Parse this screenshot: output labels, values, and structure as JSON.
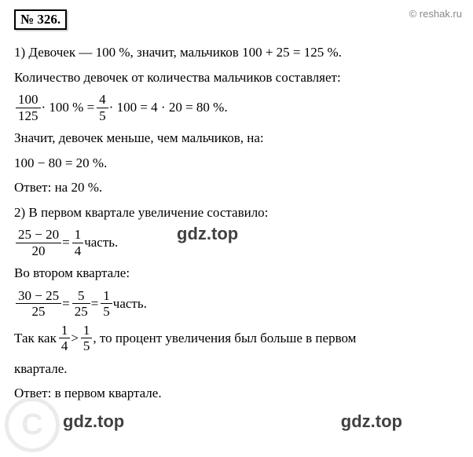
{
  "problem_number": "№ 326.",
  "attribution": "© reshak.ru",
  "watermark_text": "gdz.top",
  "copyright_c": "C",
  "p1": {
    "line1_a": "1) Девочек — 100 %, значит, мальчиков 100 + 25 = 125 %.",
    "line2": "Количество девочек от количества мальчиков составляет:",
    "eq1_f1_num": "100",
    "eq1_f1_den": "125",
    "eq1_mid1": " · 100 % = ",
    "eq1_f2_num": "4",
    "eq1_f2_den": "5",
    "eq1_mid2": " · 100 = 4 · 20 = 80 %.",
    "line3": "Значит, девочек меньше, чем мальчиков, на:",
    "line4": "100 − 80 = 20 %.",
    "answer": "Ответ: на 20 %."
  },
  "p2": {
    "line1": "2) В первом квартале увеличение составило:",
    "eq1_f1_num": "25 − 20",
    "eq1_f1_den": "20",
    "eq1_mid": " = ",
    "eq1_f2_num": "1",
    "eq1_f2_den": "4",
    "eq1_tail": "  часть.",
    "line2": "Во втором квартале:",
    "eq2_f1_num": "30 − 25",
    "eq2_f1_den": "25",
    "eq2_mid1": " = ",
    "eq2_f2_num": "5",
    "eq2_f2_den": "25",
    "eq2_mid2": " = ",
    "eq2_f3_num": "1",
    "eq2_f3_den": "5",
    "eq2_tail": "  часть.",
    "line3_a": "Так как ",
    "line3_f1_num": "1",
    "line3_f1_den": "4",
    "line3_mid": " > ",
    "line3_f2_num": "1",
    "line3_f2_den": "5",
    "line3_b": ", то процент увеличения был больше в первом",
    "line3_c": "квартале.",
    "answer": "Ответ: в первом квартале."
  }
}
